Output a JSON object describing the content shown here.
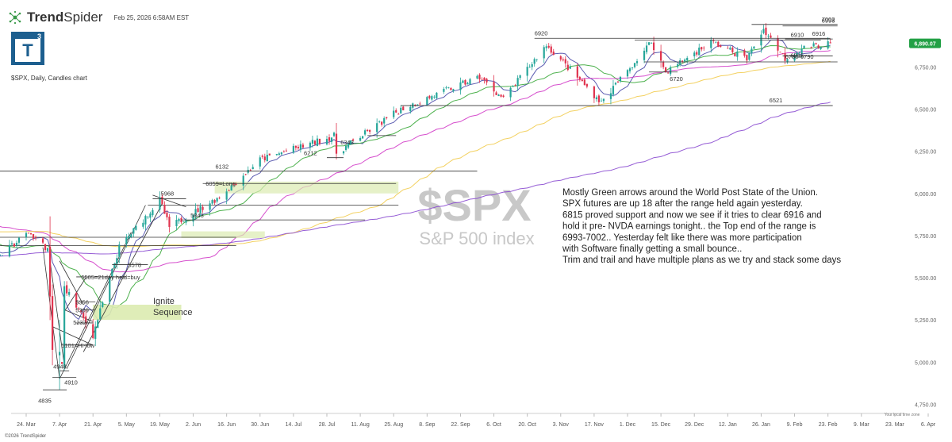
{
  "header": {
    "brand_a": "Trend",
    "brand_b": "Spider",
    "timestamp": "Feb 25, 2026 6:58AM EST",
    "badge_letter": "T",
    "badge_sup": "3",
    "symbol_line": "$SPX, Daily, Candles chart"
  },
  "footer": {
    "copyright": "©2026 TrendSpider",
    "local_time_zone": "Your local time zone"
  },
  "watermark": {
    "ticker": "$SPX",
    "name": "S&P 500 index"
  },
  "commentary": [
    "Mostly Green arrows around the World Post State of the Union.",
    "SPX futures are up 18 after the range held again yesterday.",
    "6815 proved support and now we see if it tries to clear 6916 and",
    "hold it pre- NVDA earnings tonight.. the Top end of the range is",
    "6993-7002.. Yesterday felt like there was more participation",
    "with Software finally getting a small bounce..",
    "Trim and trail and have multiple plans as we try and stack some days"
  ],
  "colors": {
    "up": "#26a69a",
    "down": "#e0344f",
    "ma_blue": "#4a4aa8",
    "ma_green": "#3aa83a",
    "ma_magenta": "#d23cc8",
    "ma_yellow": "#f2cc50",
    "ma_purple": "#8a4ad0",
    "price_badge": "#22a045",
    "highlight": "#dcebb0"
  },
  "chart_data": {
    "type": "candlestick",
    "title": "$SPX, Daily, Candles chart",
    "ylim": [
      4700,
      7100
    ],
    "y_ticks": [
      "4,750.00",
      "5,000.00",
      "5,250.00",
      "5,500.00",
      "5,750.00",
      "6,000.00",
      "6,250.00",
      "6,500.00",
      "6,750.00"
    ],
    "y_tick_values": [
      4750,
      5000,
      5250,
      5500,
      5750,
      6000,
      6250,
      6500,
      6750
    ],
    "x_ticks": [
      "24. Mar",
      "7. Apr",
      "21. Apr",
      "5. May",
      "19. May",
      "2. Jun",
      "16. Jun",
      "30. Jun",
      "14. Jul",
      "28. Jul",
      "11. Aug",
      "25. Aug",
      "8. Sep",
      "22. Sep",
      "6. Oct",
      "20. Oct",
      "3. Nov",
      "17. Nov",
      "1. Dec",
      "15. Dec",
      "29. Dec",
      "12. Jan",
      "26. Jan",
      "9. Feb",
      "23. Feb",
      "9. Mar",
      "23. Mar",
      "6. Apr"
    ],
    "last_price": "6,890.07",
    "last_price_value": 6890.07,
    "close_anchors": [
      {
        "date": "2025-03-14",
        "close": 5640
      },
      {
        "date": "2025-03-25",
        "close": 5770
      },
      {
        "date": "2025-04-02",
        "close": 5670
      },
      {
        "date": "2025-04-04",
        "close": 5070
      },
      {
        "date": "2025-04-08",
        "close": 4980
      },
      {
        "date": "2025-04-09",
        "close": 5450
      },
      {
        "date": "2025-04-21",
        "close": 5160
      },
      {
        "date": "2025-05-02",
        "close": 5680
      },
      {
        "date": "2025-05-19",
        "close": 5960
      },
      {
        "date": "2025-05-23",
        "close": 5800
      },
      {
        "date": "2025-06-13",
        "close": 5980
      },
      {
        "date": "2025-06-30",
        "close": 6200
      },
      {
        "date": "2025-07-31",
        "close": 6340
      },
      {
        "date": "2025-08-01",
        "close": 6240
      },
      {
        "date": "2025-08-28",
        "close": 6500
      },
      {
        "date": "2025-09-30",
        "close": 6690
      },
      {
        "date": "2025-10-10",
        "close": 6560
      },
      {
        "date": "2025-10-28",
        "close": 6880
      },
      {
        "date": "2025-11-20",
        "close": 6540
      },
      {
        "date": "2025-12-11",
        "close": 6900
      },
      {
        "date": "2025-12-17",
        "close": 6720
      },
      {
        "date": "2026-01-05",
        "close": 6900
      },
      {
        "date": "2026-01-20",
        "close": 6800
      },
      {
        "date": "2026-01-27",
        "close": 6975
      },
      {
        "date": "2026-02-05",
        "close": 6800
      },
      {
        "date": "2026-02-12",
        "close": 6860
      },
      {
        "date": "2026-02-24",
        "close": 6890
      }
    ],
    "moving_averages": [
      {
        "color_key": "ma_blue",
        "period": 8
      },
      {
        "color_key": "ma_green",
        "period": 21
      },
      {
        "color_key": "ma_magenta",
        "period": 50
      },
      {
        "color_key": "ma_yellow",
        "period": 100
      },
      {
        "color_key": "ma_purple",
        "period": 200
      }
    ],
    "levels": [
      {
        "label": "6920",
        "value": 6920,
        "from": "2025-10-23",
        "to": "2026-02-24"
      },
      {
        "label": "6910",
        "value": 6910,
        "from": "2025-12-04",
        "to": "2026-02-20"
      },
      {
        "label": "7002",
        "value": 7002,
        "from": "2026-01-22",
        "to": "2026-02-27"
      },
      {
        "label": "6993",
        "value": 6993,
        "from": "2026-02-04",
        "to": "2026-02-27"
      },
      {
        "label": "6916",
        "value": 6916,
        "from": "2026-02-05",
        "to": "2026-02-25"
      },
      {
        "label": "6815",
        "value": 6815,
        "from": "2026-02-04",
        "to": "2026-02-25"
      },
      {
        "label": "6780-6790",
        "value": 6780,
        "from": "2025-12-08",
        "to": "2026-02-27"
      },
      {
        "label": "6720",
        "value": 6720,
        "from": "2025-12-10",
        "to": "2025-12-22"
      },
      {
        "label": "6521",
        "value": 6521,
        "from": "2025-08-28",
        "to": "2026-02-25"
      },
      {
        "label": "6343",
        "value": 6343,
        "from": "2025-08-14",
        "to": "2025-08-26"
      },
      {
        "label": "6212",
        "value": 6212,
        "from": "2025-07-28",
        "to": "2025-08-04"
      },
      {
        "label": "6132",
        "value": 6132,
        "from": "2025-03-11",
        "to": "2025-09-29"
      },
      {
        "label": "6059=Long",
        "value": 6059,
        "from": "2025-06-06",
        "to": "2025-08-26"
      },
      {
        "label": "5968",
        "value": 5968,
        "from": "2025-05-16",
        "to": "2025-05-30"
      },
      {
        "label": "5843",
        "value": 5843,
        "from": "2025-05-28",
        "to": "2025-08-13"
      },
      {
        "label": "5578",
        "value": 5578,
        "from": "2025-04-29",
        "to": "2025-05-14"
      },
      {
        "label": "5505=21day held=buy",
        "value": 5505,
        "from": "2025-04-14",
        "to": "2025-05-05"
      },
      {
        "label": "5356",
        "value": 5356,
        "from": "2025-04-14",
        "to": "2025-04-22"
      },
      {
        "label": "5309",
        "value": 5309,
        "from": "2025-04-16",
        "to": "2025-04-22"
      },
      {
        "label": "5232",
        "value": 5232,
        "from": "2025-04-14",
        "to": "2025-04-21"
      },
      {
        "label": "5101=Hi-low",
        "value": 5101,
        "from": "2025-04-09",
        "to": "2025-04-21"
      },
      {
        "label": "4948",
        "value": 4948,
        "from": "2025-04-07",
        "to": "2025-04-11"
      },
      {
        "label": "4910",
        "value": 4910,
        "from": "2025-04-04",
        "to": "2025-04-14"
      },
      {
        "label": "4835",
        "value": 4835,
        "from": "2025-03-31",
        "to": "2025-04-10"
      }
    ],
    "annotations": [
      "Ignite",
      "Sequence"
    ]
  }
}
